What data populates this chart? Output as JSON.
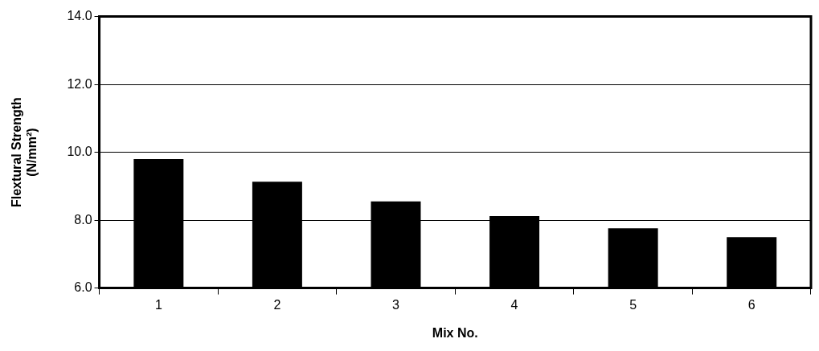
{
  "chart_data": {
    "type": "bar",
    "xlabel": "Mix No.",
    "ylabel": "Flextural Strength\n(N/mm²)",
    "categories": [
      "1",
      "2",
      "3",
      "4",
      "5",
      "6"
    ],
    "values": [
      9.8,
      9.13,
      8.55,
      8.12,
      7.76,
      7.5
    ],
    "color": "#000000",
    "ylim": [
      6,
      14
    ],
    "yticks": [
      {
        "value": 6,
        "label": "6.0"
      },
      {
        "value": 8,
        "label": "8.0"
      },
      {
        "value": 10,
        "label": "10.0"
      },
      {
        "value": 12,
        "label": "12.0"
      },
      {
        "value": 14,
        "label": "14.0"
      }
    ],
    "grid": "y",
    "legend": false
  }
}
